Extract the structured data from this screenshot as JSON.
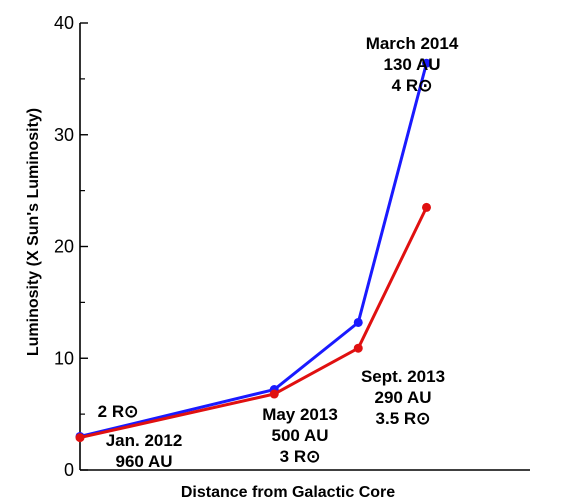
{
  "chart_data": {
    "type": "line",
    "title": "",
    "xlabel": "Distance from Galactic Core",
    "ylabel": "Luminosity (X Sun's Luminosity)",
    "ylim": [
      0,
      40
    ],
    "yticks": [
      "0",
      "10",
      "20",
      "30",
      "40"
    ],
    "x_ticks_shown": false,
    "grid": false,
    "legend": "none",
    "x": [
      0,
      3.7,
      5.3,
      6.6
    ],
    "series": [
      {
        "color": "#1a1aff",
        "values": [
          3.0,
          7.2,
          13.2,
          36.4
        ]
      },
      {
        "color": "#e01010",
        "values": [
          2.9,
          6.8,
          10.9,
          23.5
        ]
      }
    ],
    "annotations": [
      {
        "lines": [
          "2 R⊙"
        ],
        "anchor_index": 0
      },
      {
        "lines": [
          "Jan. 2012",
          "960 AU"
        ],
        "anchor_index": 0
      },
      {
        "lines": [
          "May 2013",
          "500 AU",
          "3 R⊙"
        ],
        "anchor_index": 1
      },
      {
        "lines": [
          "Sept. 2013",
          "290 AU",
          "3.5 R⊙"
        ],
        "anchor_index": 2
      },
      {
        "lines": [
          "March 2014",
          "130 AU",
          "4 R⊙"
        ],
        "anchor_index": 3
      }
    ]
  }
}
